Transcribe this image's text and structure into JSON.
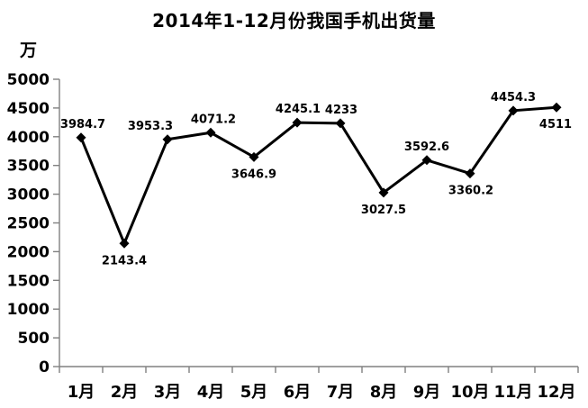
{
  "chart_data": {
    "type": "line",
    "title": "2014年1-12月份我国手机出货量",
    "unit_label": "万",
    "ylabel": "万",
    "xlabel": "",
    "categories": [
      "1月",
      "2月",
      "3月",
      "4月",
      "5月",
      "6月",
      "7月",
      "8月",
      "9月",
      "10月",
      "11月",
      "12月"
    ],
    "values": [
      3984.7,
      2143.4,
      3953.3,
      4071.2,
      3646.9,
      4245.1,
      4233,
      3027.5,
      3592.6,
      3360.2,
      4454.3,
      4511
    ],
    "data_labels": [
      "3984.7",
      "2143.4",
      "3953.3",
      "4071.2",
      "3646.9",
      "4245.1",
      "4233",
      "3027.5",
      "3592.6",
      "3360.2",
      "4454.3",
      "4511"
    ],
    "label_positions": [
      "above",
      "below",
      "above",
      "above",
      "below",
      "above",
      "above",
      "below",
      "above",
      "below",
      "above",
      "below"
    ],
    "label_dx": [
      2,
      0,
      -19,
      3,
      0,
      1,
      1,
      0,
      0,
      1,
      0,
      -1
    ],
    "ylim": [
      0,
      5000
    ],
    "ytick_interval": 500,
    "yticks": [
      0,
      500,
      1000,
      1500,
      2000,
      2500,
      3000,
      3500,
      4000,
      4500,
      5000
    ],
    "grid": false,
    "legend": "none",
    "line_color": "#000000",
    "marker_shape": "diamond",
    "axis_color": "#808080",
    "text_color": "#000000"
  }
}
